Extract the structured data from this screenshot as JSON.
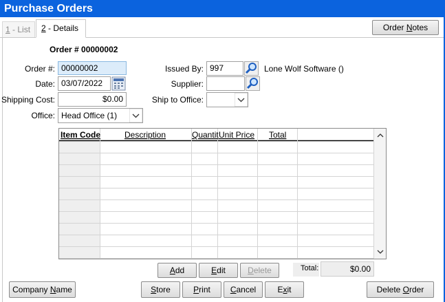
{
  "window": {
    "title": "Purchase Orders"
  },
  "tabs": [
    [
      "1",
      " - List"
    ],
    [
      "2",
      " - Details"
    ]
  ],
  "order_notes_button": [
    "Order ",
    "N",
    "otes"
  ],
  "heading": "Order # 00000002",
  "form": {
    "order_number": {
      "label": "Order #:",
      "value": "00000002"
    },
    "date": {
      "label": "Date:",
      "value": "03/07/2022"
    },
    "shipping_cost": {
      "label": "Shipping Cost:",
      "value": "$0.00"
    },
    "office": {
      "label": "Office:",
      "value": "Head Office (1)"
    },
    "issued_by": {
      "label": "Issued By:",
      "value": "997",
      "name": "Lone Wolf Software ()"
    },
    "supplier": {
      "label": "Supplier:"
    },
    "ship_to_office": {
      "label": "Ship to Office:"
    }
  },
  "grid": {
    "columns": [
      "Item Code",
      "Description",
      "Quantit",
      "Unit Price",
      "Total"
    ]
  },
  "grid_buttons": {
    "add": [
      "A",
      "dd"
    ],
    "edit": [
      "E",
      "dit"
    ],
    "delete": [
      "D",
      "elete"
    ]
  },
  "total": {
    "label": "Total:",
    "value": "$0.00"
  },
  "footer_buttons": {
    "company_name": [
      "Company ",
      "N",
      "ame"
    ],
    "store": [
      "S",
      "tore"
    ],
    "print": [
      "P",
      "rint"
    ],
    "cancel": [
      "C",
      "ancel"
    ],
    "exit": [
      "E",
      "x",
      "it"
    ],
    "delete_order": [
      "Delete ",
      "O",
      "rder"
    ]
  }
}
